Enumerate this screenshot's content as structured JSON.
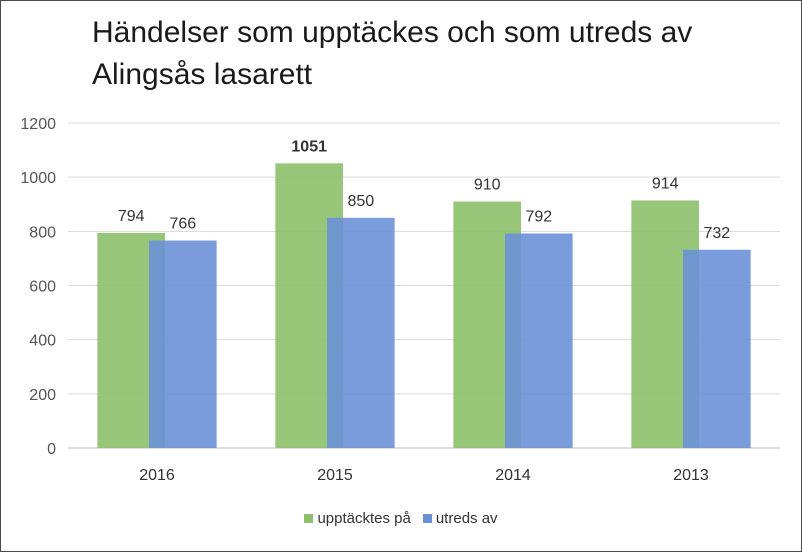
{
  "chart_data": {
    "type": "bar",
    "title": "Händelser som upptäckes och som utreds av Alingsås lasarett",
    "categories": [
      "2016",
      "2015",
      "2014",
      "2013"
    ],
    "series": [
      {
        "name": "upptäcktes på",
        "color": "#8dc06a",
        "values": [
          794,
          1051,
          910,
          914
        ]
      },
      {
        "name": "utreds av",
        "color": "#6b91d6",
        "values": [
          766,
          850,
          792,
          732
        ]
      }
    ],
    "data_labels": [
      [
        "794",
        "1051",
        "910",
        "914"
      ],
      [
        "766",
        "850",
        "792",
        "732"
      ]
    ],
    "y_ticks": [
      "0",
      "200",
      "400",
      "600",
      "800",
      "1000",
      "1200"
    ],
    "ylim": [
      0,
      1200
    ],
    "xlabel": "",
    "ylabel": "",
    "grid": true,
    "legend_position": "bottom"
  }
}
